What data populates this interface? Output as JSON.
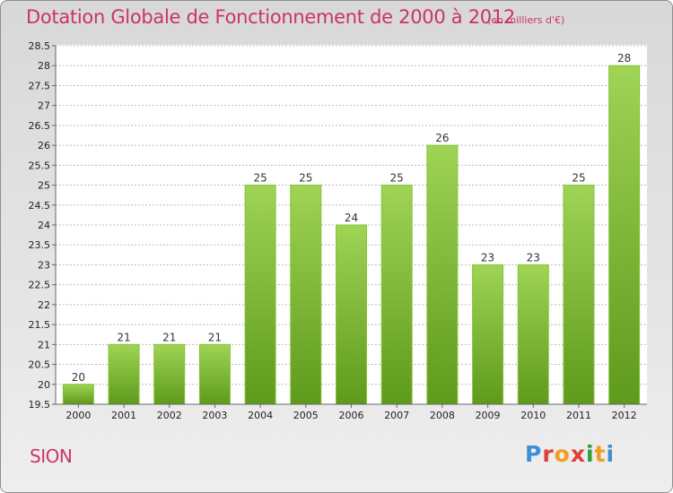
{
  "title": "Dotation Globale de Fonctionnement de 2000 à 2012",
  "subtitle": "(en milliers d'€)",
  "commune": "SION",
  "logo_text": "Proxiti",
  "colors": {
    "title": "#cc3366",
    "bar_light": "#99d050",
    "bar_dark": "#5e9a1c"
  },
  "chart_data": {
    "type": "bar",
    "title": "Dotation Globale de Fonctionnement de 2000 à 2012",
    "subtitle": "(en milliers d'€)",
    "categories": [
      "2000",
      "2001",
      "2002",
      "2003",
      "2004",
      "2005",
      "2006",
      "2007",
      "2008",
      "2009",
      "2010",
      "2011",
      "2012"
    ],
    "values": [
      20,
      21,
      21,
      21,
      25,
      25,
      24,
      25,
      26,
      23,
      23,
      25,
      28
    ],
    "ylim": [
      19.5,
      28.5
    ],
    "yticks": [
      "19.5",
      "20",
      "20.5",
      "21",
      "21.5",
      "22",
      "22.5",
      "23",
      "23.5",
      "24",
      "24.5",
      "25",
      "25.5",
      "26",
      "26.5",
      "27",
      "27.5",
      "28",
      "28.5"
    ],
    "grid": true
  }
}
